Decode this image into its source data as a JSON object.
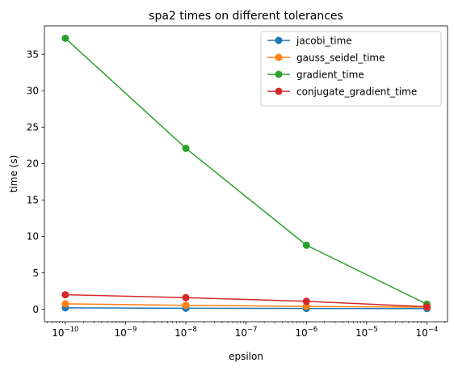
{
  "chart_data": {
    "type": "line",
    "title": "spa2 times on different tolerances",
    "xlabel": "epsilon",
    "ylabel": "time (s)",
    "x_scale": "log",
    "x": [
      1e-10,
      1e-08,
      1e-06,
      0.0001
    ],
    "xlim": [
      4.5e-11,
      0.00022
    ],
    "ylim": [
      -1.7,
      38.9
    ],
    "x_major_ticks": [
      {
        "value": 1e-10,
        "base": "10",
        "exp": "−10"
      },
      {
        "value": 1e-09,
        "base": "10",
        "exp": "−9"
      },
      {
        "value": 1e-08,
        "base": "10",
        "exp": "−8"
      },
      {
        "value": 1e-07,
        "base": "10",
        "exp": "−7"
      },
      {
        "value": 1e-06,
        "base": "10",
        "exp": "−6"
      },
      {
        "value": 1e-05,
        "base": "10",
        "exp": "−5"
      },
      {
        "value": 0.0001,
        "base": "10",
        "exp": "−4"
      }
    ],
    "y_ticks": [
      0,
      5,
      10,
      15,
      20,
      25,
      30,
      35
    ],
    "grid": false,
    "legend_position": "top-right",
    "series": [
      {
        "name": "jacobi_time",
        "color": "#1f77b4",
        "values": [
          0.2,
          0.15,
          0.12,
          0.1
        ]
      },
      {
        "name": "gauss_seidel_time",
        "color": "#ff7f0e",
        "values": [
          0.75,
          0.55,
          0.4,
          0.3
        ]
      },
      {
        "name": "gradient_time",
        "color": "#2ca02c",
        "values": [
          37.2,
          22.1,
          8.8,
          0.7
        ]
      },
      {
        "name": "conjugate_gradient_time",
        "color": "#d62728",
        "values": [
          2.0,
          1.6,
          1.1,
          0.35
        ]
      }
    ]
  }
}
